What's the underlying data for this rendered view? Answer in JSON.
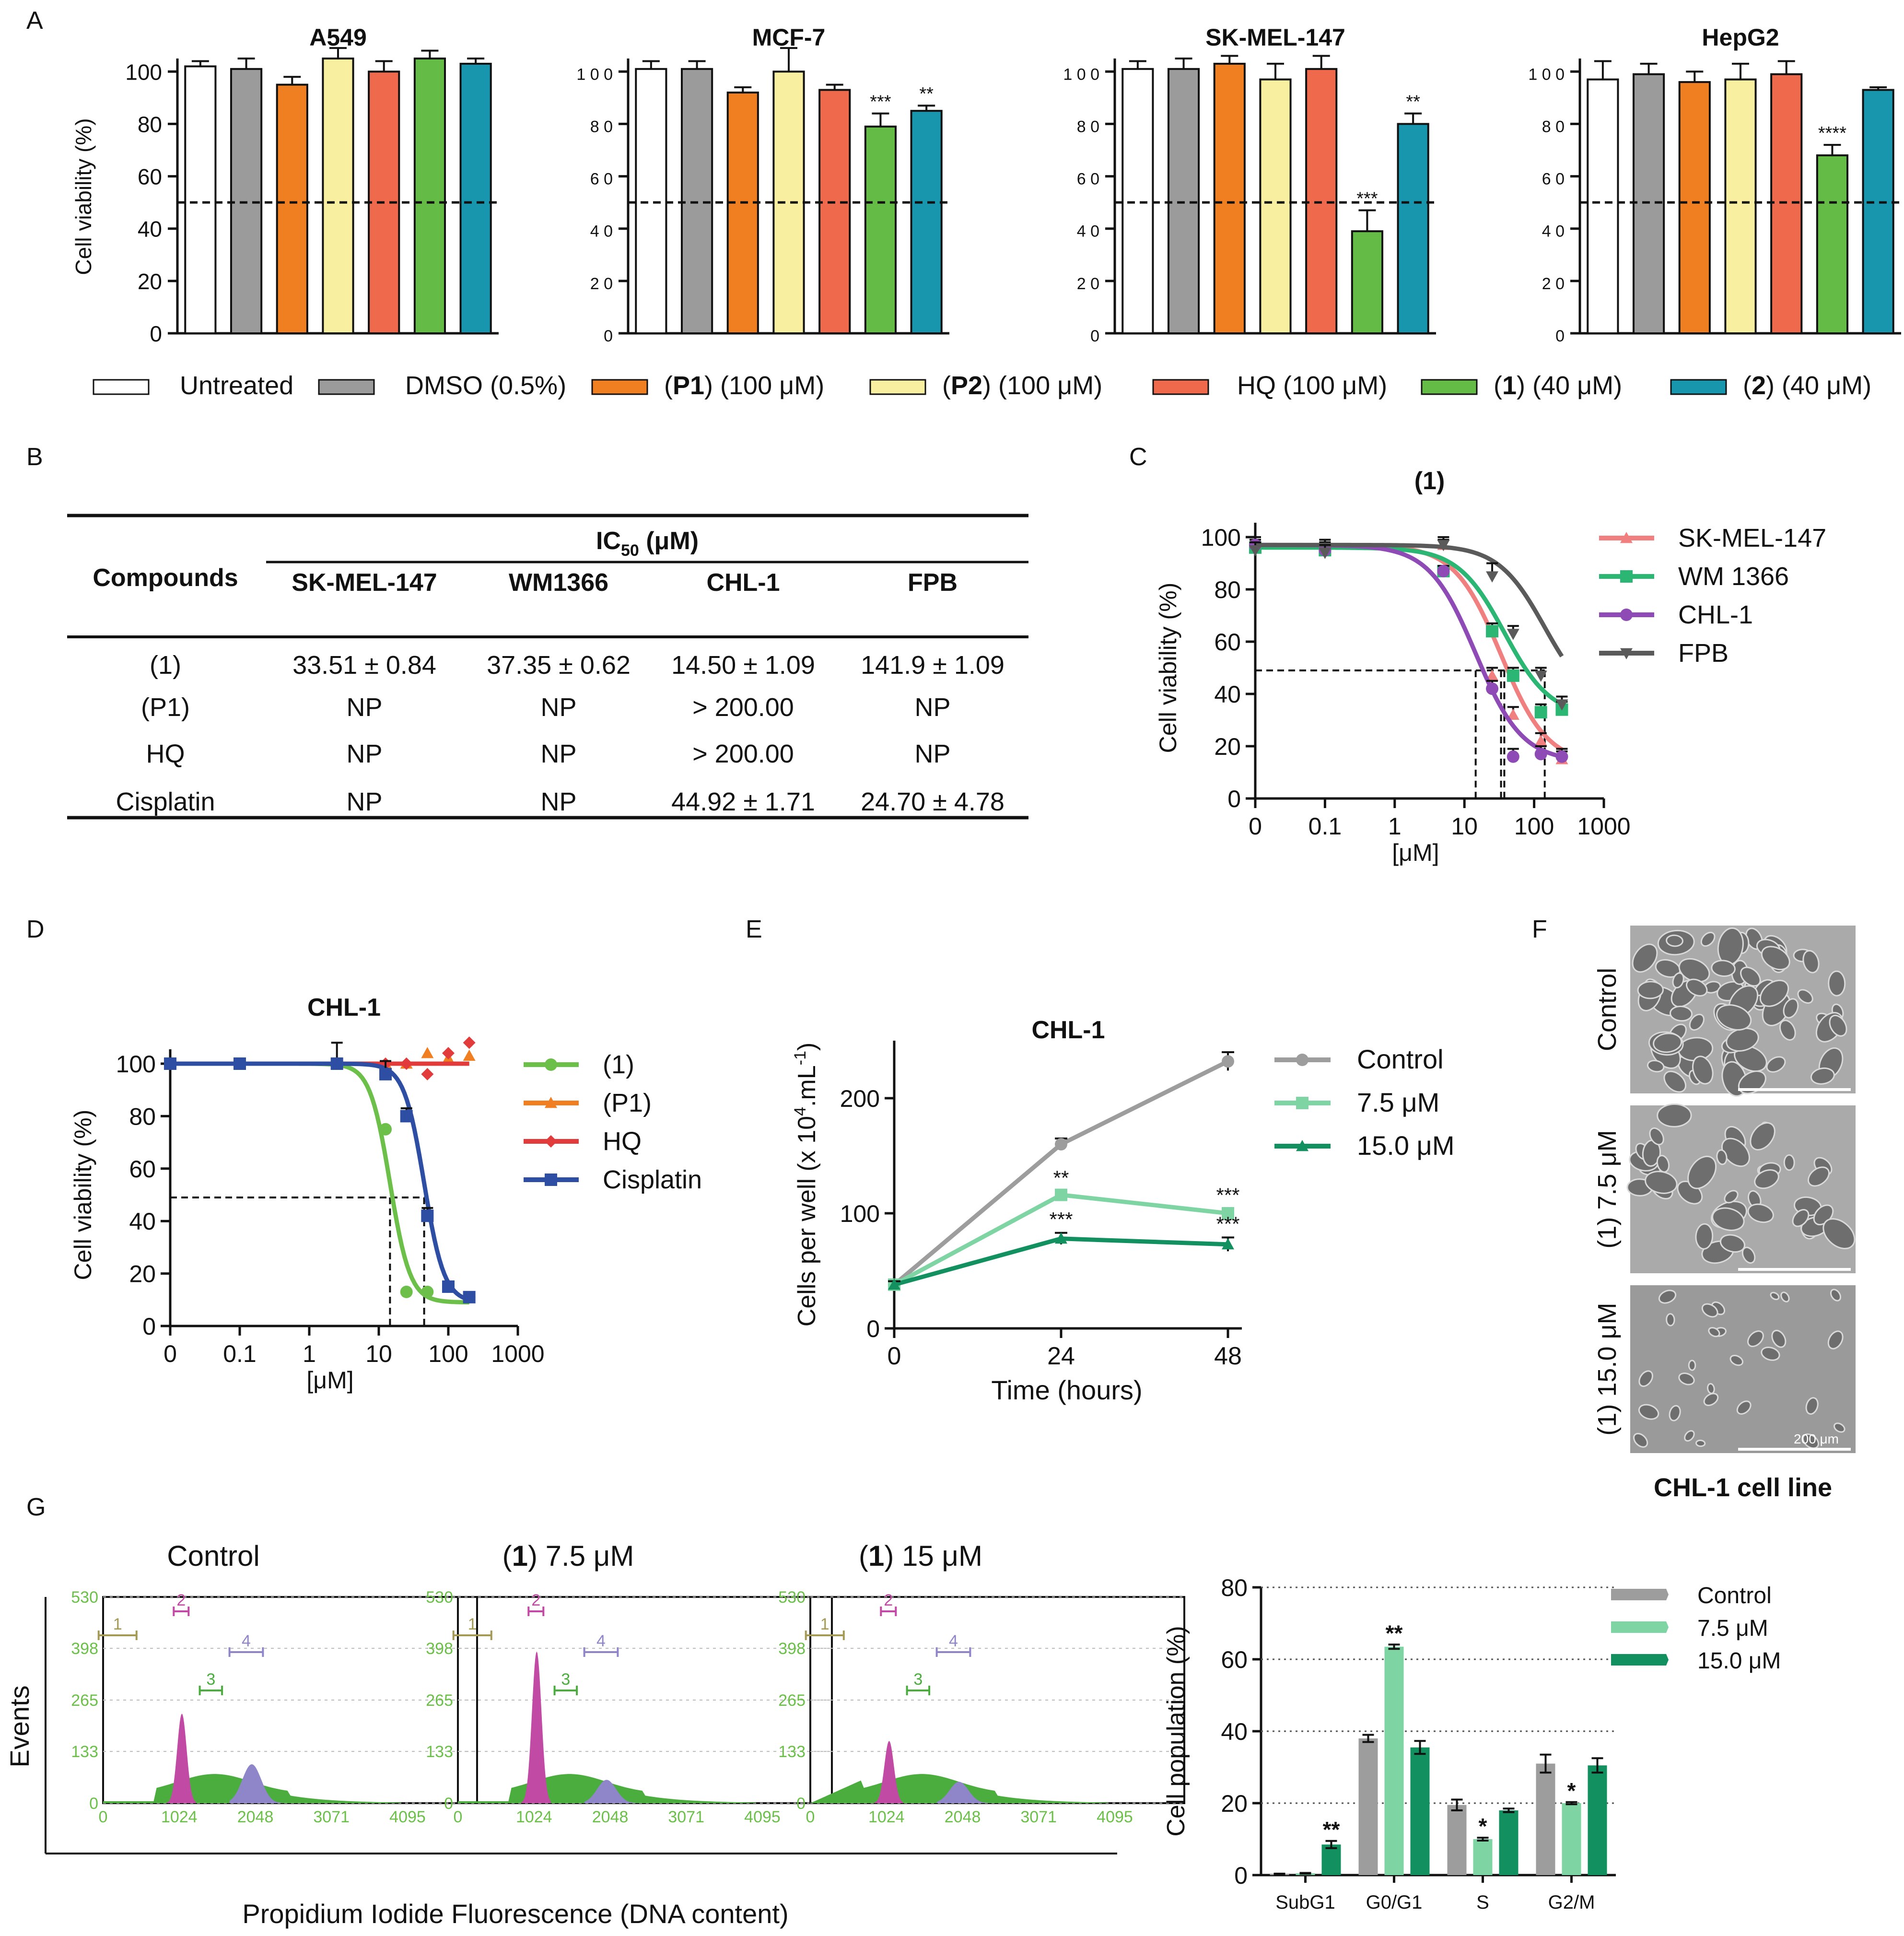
{
  "colors": {
    "untreated": "#ffffff",
    "dmso": "#9b9b9b",
    "p1": "#f07f22",
    "p2": "#f8f0a0",
    "hq": "#ef6a4d",
    "c1": "#64bb46",
    "c2": "#1796ae",
    "sk": "#f08080",
    "wm": "#2bb673",
    "chl": "#8e4ab5",
    "fpb": "#5a5a5a",
    "cis": "#2e4ea3",
    "hqd": "#e23b3b",
    "p1d": "#f07f22",
    "c1d": "#6cc04a",
    "ctrl": "#9d9d9d",
    "c75": "#7fd4a3",
    "c15": "#139060",
    "magenta": "#c04aa4",
    "green": "#4aad3d",
    "blue": "#8e86c9",
    "olive": "#a49a55",
    "axisgreen": "#6cc04a"
  },
  "panel_labels": {
    "A": "A",
    "B": "B",
    "C": "C",
    "D": "D",
    "E": "E",
    "F": "F",
    "G": "G"
  },
  "panel_a": {
    "ylabel": "Cell viability (%)",
    "yticks": [
      "0",
      "20",
      "40",
      "60",
      "80",
      "100"
    ],
    "yticks_spaced": [
      "0",
      "2 0",
      "4 0",
      "6 0",
      "8 0",
      "1 0 0"
    ],
    "legend": [
      {
        "key": "untreated",
        "pre": "",
        "bold": "",
        "post": "Untreated"
      },
      {
        "key": "dmso",
        "pre": "",
        "bold": "",
        "post": "DMSO (0.5%)"
      },
      {
        "key": "p1",
        "pre": "(",
        "bold": "P1",
        "post": ") (100 μM)"
      },
      {
        "key": "p2",
        "pre": "(",
        "bold": "P2",
        "post": ") (100 μM)"
      },
      {
        "key": "hq",
        "pre": "",
        "bold": "",
        "post": "HQ (100 μM)"
      },
      {
        "key": "c1",
        "pre": "(",
        "bold": "1",
        "post": ") (40 μM)"
      },
      {
        "key": "c2",
        "pre": "(",
        "bold": "2",
        "post": ") (40 μM)"
      }
    ]
  },
  "panel_b": {
    "header_main": "IC",
    "header_sub": "50",
    "header_unit": " (μM)",
    "col_compounds": "Compounds",
    "columns": [
      "SK-MEL-147",
      "WM1366",
      "CHL-1",
      "FPB"
    ],
    "rows": [
      {
        "name": "(1)",
        "vals": [
          "33.51 ± 0.84",
          "37.35 ± 0.62",
          "14.50 ± 1.09",
          "141.9 ± 1.09"
        ]
      },
      {
        "name": "(P1)",
        "vals": [
          "NP",
          "NP",
          "> 200.00",
          "NP"
        ]
      },
      {
        "name": "HQ",
        "vals": [
          "NP",
          "NP",
          "> 200.00",
          "NP"
        ]
      },
      {
        "name": "Cisplatin",
        "vals": [
          "NP",
          "NP",
          "44.92 ± 1.71",
          "24.70 ± 4.78"
        ]
      }
    ]
  },
  "panel_f": {
    "labels": [
      "Control",
      "(1) 7.5 μM",
      "(1) 15.0 μM"
    ],
    "scale": "200 μm",
    "caption": "CHL-1 cell line"
  },
  "panel_g": {
    "titles": [
      {
        "pre": "",
        "bold": "",
        "post": "Control"
      },
      {
        "pre": "(",
        "bold": "1",
        "post": ") 7.5 μM"
      },
      {
        "pre": "(",
        "bold": "1",
        "post": ") 15 μM"
      }
    ],
    "ylabel": "Events",
    "xlabel": "Propidium Iodide Fluorescence (DNA content)",
    "yticks": [
      "0",
      "133",
      "265",
      "398",
      "530"
    ],
    "xticks": [
      "0",
      "1024",
      "2048",
      "3071",
      "4095"
    ],
    "gates": [
      "1",
      "2",
      "3",
      "4"
    ]
  },
  "chart_data": [
    {
      "type": "bar",
      "title": "A549",
      "ylabel": "Cell viability (%)",
      "ylim": [
        0,
        100
      ],
      "threshold": 50,
      "categories": [
        "Untreated",
        "DMSO (0.5%)",
        "(P1) (100 μM)",
        "(P2) (100 μM)",
        "HQ (100 μM)",
        "(1) (40 μM)",
        "(2) (40 μM)"
      ],
      "values": [
        102,
        101,
        95,
        105,
        100,
        105,
        103
      ],
      "errors": [
        2,
        4,
        3,
        4,
        4,
        3,
        2
      ],
      "annotations": [
        "",
        "",
        "",
        "",
        "",
        "",
        ""
      ]
    },
    {
      "type": "bar",
      "title": "MCF-7",
      "ylabel": "Cell viability (%)",
      "ylim": [
        0,
        100
      ],
      "threshold": 50,
      "categories": [
        "Untreated",
        "DMSO (0.5%)",
        "(P1) (100 μM)",
        "(P2) (100 μM)",
        "HQ (100 μM)",
        "(1) (40 μM)",
        "(2) (40 μM)"
      ],
      "values": [
        101,
        101,
        92,
        100,
        93,
        79,
        85
      ],
      "errors": [
        3,
        3,
        2,
        9,
        2,
        5,
        2
      ],
      "annotations": [
        "",
        "",
        "",
        "",
        "",
        "***",
        "**"
      ]
    },
    {
      "type": "bar",
      "title": "SK-MEL-147",
      "ylabel": "Cell viability (%)",
      "ylim": [
        0,
        100
      ],
      "threshold": 50,
      "categories": [
        "Untreated",
        "DMSO (0.5%)",
        "(P1) (100 μM)",
        "(P2) (100 μM)",
        "HQ (100 μM)",
        "(1) (40 μM)",
        "(2) (40 μM)"
      ],
      "values": [
        101,
        101,
        103,
        97,
        101,
        39,
        80
      ],
      "errors": [
        3,
        4,
        3,
        6,
        5,
        8,
        4
      ],
      "annotations": [
        "",
        "",
        "",
        "",
        "",
        "***",
        "**"
      ]
    },
    {
      "type": "bar",
      "title": "HepG2",
      "ylabel": "Cell viability (%)",
      "ylim": [
        0,
        100
      ],
      "threshold": 50,
      "categories": [
        "Untreated",
        "DMSO (0.5%)",
        "(P1) (100 μM)",
        "(P2) (100 μM)",
        "HQ (100 μM)",
        "(1) (40 μM)",
        "(2) (40 μM)"
      ],
      "values": [
        97,
        99,
        96,
        97,
        99,
        68,
        93
      ],
      "errors": [
        7,
        4,
        4,
        6,
        5,
        4,
        1
      ],
      "annotations": [
        "",
        "",
        "",
        "",
        "",
        "****",
        ""
      ]
    },
    {
      "type": "line",
      "title": "(1)",
      "ylabel": "Cell viability (%)",
      "xlabel": "[μM]",
      "xscale": "log",
      "ylim": [
        0,
        100
      ],
      "threshold": 50,
      "xticks": [
        "0",
        "0.1",
        "1",
        "10",
        "100",
        "1000"
      ],
      "yticks": [
        "0",
        "20",
        "40",
        "60",
        "80",
        "100"
      ],
      "series": [
        {
          "name": "SK-MEL-147",
          "marker": "triangle",
          "x": [
            0.01,
            0.1,
            5,
            25,
            50,
            125,
            250
          ],
          "y": [
            97,
            96,
            97,
            47,
            32,
            22,
            15
          ],
          "errors": [
            3,
            3,
            2,
            3,
            3,
            3,
            3
          ],
          "ic50": 33.51
        },
        {
          "name": "WM 1366",
          "marker": "square",
          "x": [
            0.01,
            0.1,
            5,
            25,
            50,
            125,
            250
          ],
          "y": [
            96,
            95,
            87,
            64,
            47,
            33,
            34
          ],
          "errors": [
            3,
            3,
            2,
            3,
            3,
            3,
            3
          ],
          "ic50": 37.35
        },
        {
          "name": "CHL-1",
          "marker": "circle",
          "x": [
            0.01,
            0.1,
            5,
            25,
            50,
            125,
            250
          ],
          "y": [
            97,
            95,
            87,
            42,
            16,
            17,
            16
          ],
          "errors": [
            3,
            3,
            2,
            3,
            3,
            3,
            3
          ],
          "ic50": 14.5
        },
        {
          "name": "FPB",
          "marker": "triangle-down",
          "x": [
            0.01,
            0.1,
            5,
            25,
            50,
            125,
            250
          ],
          "y": [
            95,
            94,
            97,
            85,
            63,
            47,
            36
          ],
          "errors": [
            3,
            3,
            3,
            5,
            3,
            3,
            3
          ],
          "ic50": 141.9
        }
      ]
    },
    {
      "type": "line",
      "title": "CHL-1",
      "ylabel": "Cell viability (%)",
      "xlabel": "[μM]",
      "xscale": "log",
      "ylim": [
        0,
        100
      ],
      "threshold": 50,
      "xticks": [
        "0",
        "0.1",
        "1",
        "10",
        "100",
        "1000"
      ],
      "yticks": [
        "0",
        "20",
        "40",
        "60",
        "80",
        "100"
      ],
      "series": [
        {
          "name": "(1)",
          "marker": "circle",
          "x": [
            0.01,
            0.1,
            2.5,
            12.5,
            25,
            50,
            100,
            200
          ],
          "y": [
            100,
            100,
            100,
            75,
            13,
            13,
            15,
            11
          ],
          "errors": [
            0,
            0,
            0,
            0,
            0,
            0,
            0,
            0
          ],
          "ic50": 14.5
        },
        {
          "name": "(P1)",
          "marker": "triangle",
          "x": [
            0.01,
            0.1,
            2.5,
            12.5,
            25,
            50,
            100,
            200
          ],
          "y": [
            100,
            100,
            100,
            100,
            100,
            104,
            102,
            103
          ],
          "errors": [
            0,
            0,
            0,
            0,
            0,
            0,
            0,
            0
          ],
          "ic50": null
        },
        {
          "name": "HQ",
          "marker": "diamond",
          "x": [
            0.01,
            0.1,
            2.5,
            12.5,
            25,
            50,
            100,
            200
          ],
          "y": [
            100,
            100,
            100,
            100,
            100,
            96,
            104,
            108
          ],
          "errors": [
            0,
            0,
            0,
            0,
            0,
            0,
            0,
            0
          ],
          "ic50": null
        },
        {
          "name": "Cisplatin",
          "marker": "square",
          "x": [
            0.01,
            0.1,
            2.5,
            12.5,
            25,
            50,
            100,
            200
          ],
          "y": [
            100,
            100,
            100,
            96,
            80,
            42,
            15,
            11
          ],
          "errors": [
            0,
            0,
            8,
            5,
            3,
            3,
            2,
            0
          ],
          "ic50": 44.92
        }
      ]
    },
    {
      "type": "line",
      "title": "CHL-1",
      "ylabel": "Cells per well (x 10^4.mL^-1)",
      "xlabel": "Time (hours)",
      "ylim": [
        0,
        250
      ],
      "x": [
        0,
        24,
        48
      ],
      "xticks": [
        "0",
        "24",
        "48"
      ],
      "yticks": [
        "0",
        "100",
        "200"
      ],
      "series": [
        {
          "name": "Control",
          "values": [
            38,
            160,
            232
          ],
          "errors": [
            3,
            5,
            8
          ],
          "annotations": [
            "",
            "",
            ""
          ]
        },
        {
          "name": "7.5 μM",
          "values": [
            38,
            116,
            100
          ],
          "errors": [
            3,
            3,
            4
          ],
          "annotations": [
            "",
            "**",
            "***"
          ]
        },
        {
          "name": "15.0 μM",
          "values": [
            38,
            78,
            73
          ],
          "errors": [
            3,
            5,
            6
          ],
          "annotations": [
            "",
            "***",
            "***"
          ]
        }
      ]
    },
    {
      "type": "bar",
      "title": "",
      "ylabel": "Cell population (%)",
      "ylim": [
        0,
        80
      ],
      "categories": [
        "SubG1",
        "G0/G1",
        "S",
        "G2/M"
      ],
      "yticks": [
        "0",
        "20",
        "40",
        "60",
        "80"
      ],
      "series": [
        {
          "name": "Control",
          "values": [
            0.3,
            38,
            19.5,
            31
          ],
          "errors": [
            0.1,
            1,
            1.5,
            2.5
          ],
          "annotations": [
            "",
            "",
            "",
            ""
          ]
        },
        {
          "name": "7.5 μM",
          "values": [
            0.5,
            63.5,
            10,
            20
          ],
          "errors": [
            0.1,
            0.6,
            0.4,
            0.3
          ],
          "annotations": [
            "",
            "**",
            "*",
            "*"
          ]
        },
        {
          "name": "15.0 μM",
          "values": [
            8.5,
            35.5,
            18,
            30.5
          ],
          "errors": [
            1,
            1.8,
            0.5,
            2
          ],
          "annotations": [
            "**",
            "",
            "",
            ""
          ]
        }
      ]
    }
  ]
}
